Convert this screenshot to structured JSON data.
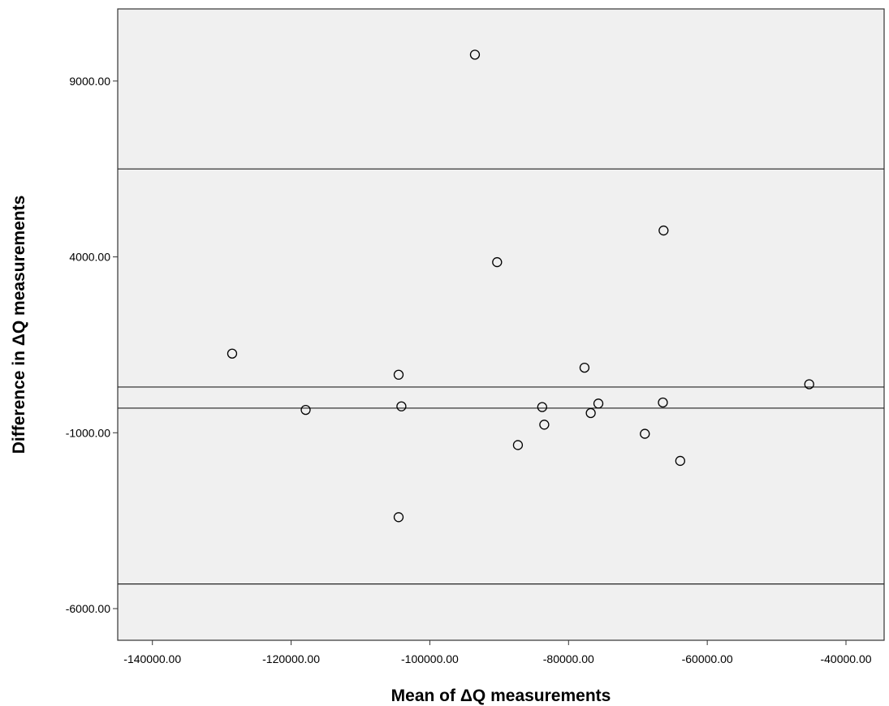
{
  "chart_data": {
    "type": "scatter",
    "title": "",
    "xlabel": "Mean of ΔQ measurements",
    "ylabel": "Difference in ΔQ measurements",
    "xlim": [
      -145000,
      -34500
    ],
    "ylim": [
      -6900,
      11050
    ],
    "x_ticks": [
      -140000,
      -120000,
      -100000,
      -80000,
      -60000,
      -40000
    ],
    "x_tick_labels": [
      "-140000.00",
      "-120000.00",
      "-100000.00",
      "-80000.00",
      "-60000.00",
      "-40000.00"
    ],
    "y_ticks": [
      9000,
      4000,
      -1000,
      -6000
    ],
    "y_tick_labels": [
      "9000.00",
      "4000.00",
      "-1000.00",
      "-6000.00"
    ],
    "grid": false,
    "reference_lines": [
      6500,
      300,
      -300,
      -5300
    ],
    "points": [
      {
        "x": -93500,
        "y": 9750
      },
      {
        "x": -90300,
        "y": 3850
      },
      {
        "x": -66300,
        "y": 4750
      },
      {
        "x": -128500,
        "y": 1250
      },
      {
        "x": -104500,
        "y": 650
      },
      {
        "x": -77700,
        "y": 850
      },
      {
        "x": -45300,
        "y": 380
      },
      {
        "x": -117900,
        "y": -350
      },
      {
        "x": -104100,
        "y": -250
      },
      {
        "x": -83800,
        "y": -270
      },
      {
        "x": -75700,
        "y": -170
      },
      {
        "x": -66400,
        "y": -140
      },
      {
        "x": -76800,
        "y": -440
      },
      {
        "x": -83500,
        "y": -770
      },
      {
        "x": -69000,
        "y": -1030
      },
      {
        "x": -87300,
        "y": -1350
      },
      {
        "x": -63900,
        "y": -1800
      },
      {
        "x": -104500,
        "y": -3400
      }
    ]
  }
}
